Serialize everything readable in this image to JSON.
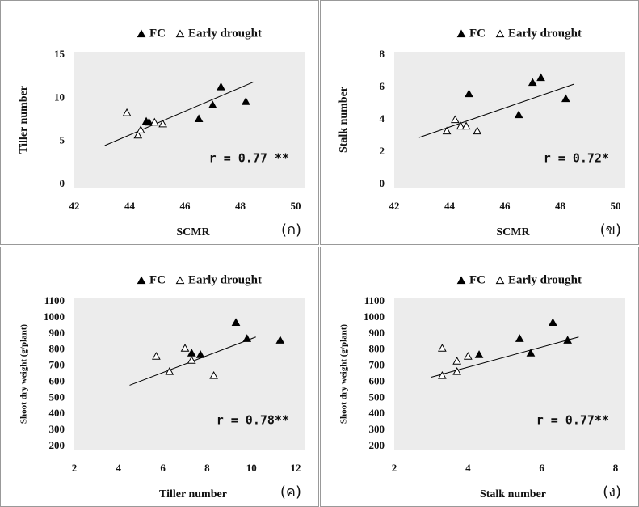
{
  "chart_data": [
    {
      "type": "scatter",
      "xlabel": "SCMR",
      "ylabel": "Tiller number",
      "panel_label": "(ก)",
      "annotation": "r = 0.77 **",
      "xlim": [
        42,
        50
      ],
      "ylim": [
        0,
        15
      ],
      "xticks": [
        42,
        44,
        46,
        48,
        50
      ],
      "yticks": [
        0,
        5,
        10,
        15
      ],
      "series": [
        {
          "name": "FC",
          "color": "#000000",
          "marker": "filled",
          "x": [
            44.6,
            44.7,
            46.5,
            47.0,
            47.3,
            48.2
          ],
          "values": [
            7.3,
            7.2,
            7.6,
            9.2,
            11.3,
            9.6
          ]
        },
        {
          "name": "Early drought",
          "color": "#000000",
          "marker": "open",
          "x": [
            43.9,
            44.3,
            44.4,
            44.9,
            45.2
          ],
          "values": [
            8.3,
            5.7,
            6.3,
            7.2,
            7.0
          ]
        }
      ],
      "trendline": {
        "x": [
          43.1,
          48.5
        ],
        "values": [
          4.5,
          11.9
        ]
      }
    },
    {
      "type": "scatter",
      "xlabel": "SCMR",
      "ylabel": "Stalk number",
      "panel_label": "(ข)",
      "annotation": "r = 0.72*",
      "xlim": [
        42,
        50
      ],
      "ylim": [
        0,
        8
      ],
      "xticks": [
        42,
        44,
        46,
        48,
        50
      ],
      "yticks": [
        0,
        2,
        4,
        6,
        8
      ],
      "series": [
        {
          "name": "FC",
          "color": "#000000",
          "marker": "filled",
          "x": [
            44.7,
            46.5,
            47.0,
            47.3,
            48.2
          ],
          "values": [
            5.6,
            4.3,
            6.3,
            6.6,
            5.3
          ]
        },
        {
          "name": "Early drought",
          "color": "#000000",
          "marker": "open",
          "x": [
            43.9,
            44.2,
            44.4,
            44.6,
            45.0
          ],
          "values": [
            3.3,
            4.0,
            3.6,
            3.6,
            3.3
          ]
        }
      ],
      "trendline": {
        "x": [
          42.9,
          48.5
        ],
        "values": [
          2.9,
          6.2
        ]
      }
    },
    {
      "type": "scatter",
      "xlabel": "Tiller number",
      "ylabel": "Shoot dry weight (g/plant)",
      "panel_label": "(ค)",
      "annotation": "r = 0.78**",
      "xlim": [
        2,
        12
      ],
      "ylim": [
        200,
        1100
      ],
      "xticks": [
        2,
        4,
        6,
        8,
        10,
        12
      ],
      "yticks": [
        200,
        300,
        400,
        500,
        600,
        700,
        800,
        900,
        1000,
        1100
      ],
      "series": [
        {
          "name": "FC",
          "color": "#000000",
          "marker": "filled",
          "x": [
            9.3,
            9.8,
            11.3,
            7.3,
            7.7
          ],
          "values": [
            970,
            870,
            860,
            780,
            770
          ]
        },
        {
          "name": "Early drought",
          "color": "#000000",
          "marker": "open",
          "x": [
            5.7,
            6.3,
            7.0,
            7.3,
            8.3
          ],
          "values": [
            760,
            665,
            810,
            735,
            640
          ]
        }
      ],
      "trendline": {
        "x": [
          4.5,
          10.2
        ],
        "values": [
          580,
          880
        ]
      }
    },
    {
      "type": "scatter",
      "xlabel": "Stalk number",
      "ylabel": "Shoot dry weight (g/plant)",
      "panel_label": "(ง)",
      "annotation": "r = 0.77**",
      "xlim": [
        2,
        8
      ],
      "ylim": [
        200,
        1100
      ],
      "xticks": [
        2,
        4,
        6,
        8
      ],
      "yticks": [
        200,
        300,
        400,
        500,
        600,
        700,
        800,
        900,
        1000,
        1100
      ],
      "series": [
        {
          "name": "FC",
          "color": "#000000",
          "marker": "filled",
          "x": [
            6.3,
            5.4,
            6.7,
            5.7,
            4.3
          ],
          "values": [
            970,
            870,
            860,
            780,
            770
          ]
        },
        {
          "name": "Early drought",
          "color": "#000000",
          "marker": "open",
          "x": [
            3.3,
            3.7,
            4.0,
            3.7,
            3.3
          ],
          "values": [
            810,
            730,
            760,
            665,
            640
          ]
        }
      ],
      "trendline": {
        "x": [
          3.0,
          7.0
        ],
        "values": [
          630,
          880
        ]
      }
    }
  ]
}
